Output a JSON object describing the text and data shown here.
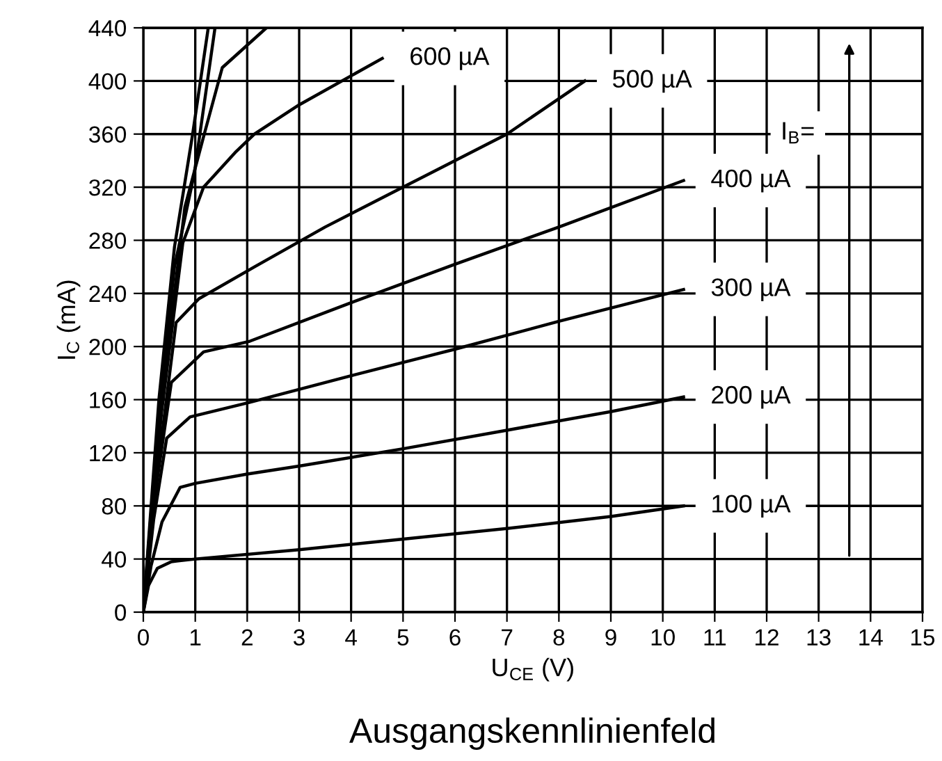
{
  "chart_data": {
    "type": "line",
    "title": "Ausgangskennlinienfeld",
    "xlabel": "U$_{CE}$ (V)",
    "ylabel": "I$_{C}$ (mA)",
    "xlim": [
      0,
      15
    ],
    "xticks": [
      0,
      1,
      2,
      3,
      4,
      5,
      6,
      7,
      8,
      9,
      10,
      11,
      12,
      13,
      14,
      15
    ],
    "ylim": [
      0,
      440
    ],
    "yticks": [
      0,
      40,
      80,
      120,
      160,
      200,
      240,
      280,
      320,
      360,
      400,
      440
    ],
    "grid": true,
    "marker": "none",
    "line_style": "solid",
    "series": [
      {
        "name": "100 µA",
        "color": "#000000",
        "x": [
          0,
          0.1,
          0.27,
          0.54,
          1,
          3,
          5,
          7,
          9,
          10.4
        ],
        "values": [
          0,
          20,
          33,
          38,
          40,
          47,
          55,
          63,
          72,
          80
        ]
      },
      {
        "name": "200 µA",
        "color": "#000000",
        "x": [
          0,
          0.15,
          0.36,
          0.71,
          1,
          2,
          3,
          5,
          7,
          9,
          10.4
        ],
        "values": [
          0,
          35,
          68,
          94,
          97,
          104,
          110,
          123,
          137,
          151,
          162
        ]
      },
      {
        "name": "300 µA",
        "color": "#000000",
        "x": [
          0,
          0.2,
          0.45,
          0.9,
          2.05,
          4,
          6,
          8,
          10.4
        ],
        "values": [
          0,
          70,
          131,
          147,
          158,
          178,
          198,
          219,
          243
        ]
      },
      {
        "name": "400 µA",
        "color": "#000000",
        "x": [
          0,
          0.25,
          0.54,
          1.16,
          2.05,
          4,
          6,
          8,
          10.4
        ],
        "values": [
          0,
          95,
          173,
          196,
          204,
          233,
          262,
          290,
          325
        ]
      },
      {
        "name": "500 µA",
        "color": "#000000",
        "x": [
          0,
          0.3,
          0.63,
          1.07,
          2.14,
          3.5,
          5,
          7,
          8.5
        ],
        "values": [
          0,
          115,
          218,
          236,
          260,
          290,
          320,
          360,
          400
        ]
      },
      {
        "name": "600 µA",
        "color": "#000000",
        "x": [
          0,
          0.35,
          0.76,
          1.16,
          1.79,
          2.14,
          3,
          4.6
        ],
        "values": [
          0,
          150,
          278,
          320,
          347,
          360,
          382,
          417
        ]
      },
      {
        "color": "#000000",
        "x": [
          0,
          0.35,
          0.8,
          1.16,
          1.52,
          2.37
        ],
        "values": [
          0,
          160,
          305,
          358,
          410,
          440
        ]
      },
      {
        "color": "#000000",
        "x": [
          0,
          0.3,
          0.6,
          0.98,
          1.38
        ],
        "values": [
          0,
          150,
          260,
          330,
          440
        ]
      },
      {
        "color": "#000000",
        "x": [
          0,
          0.3,
          0.6,
          0.95,
          1.25
        ],
        "values": [
          0,
          160,
          275,
          360,
          440
        ]
      }
    ],
    "annotations": [
      "I$_{B}$="
    ]
  }
}
